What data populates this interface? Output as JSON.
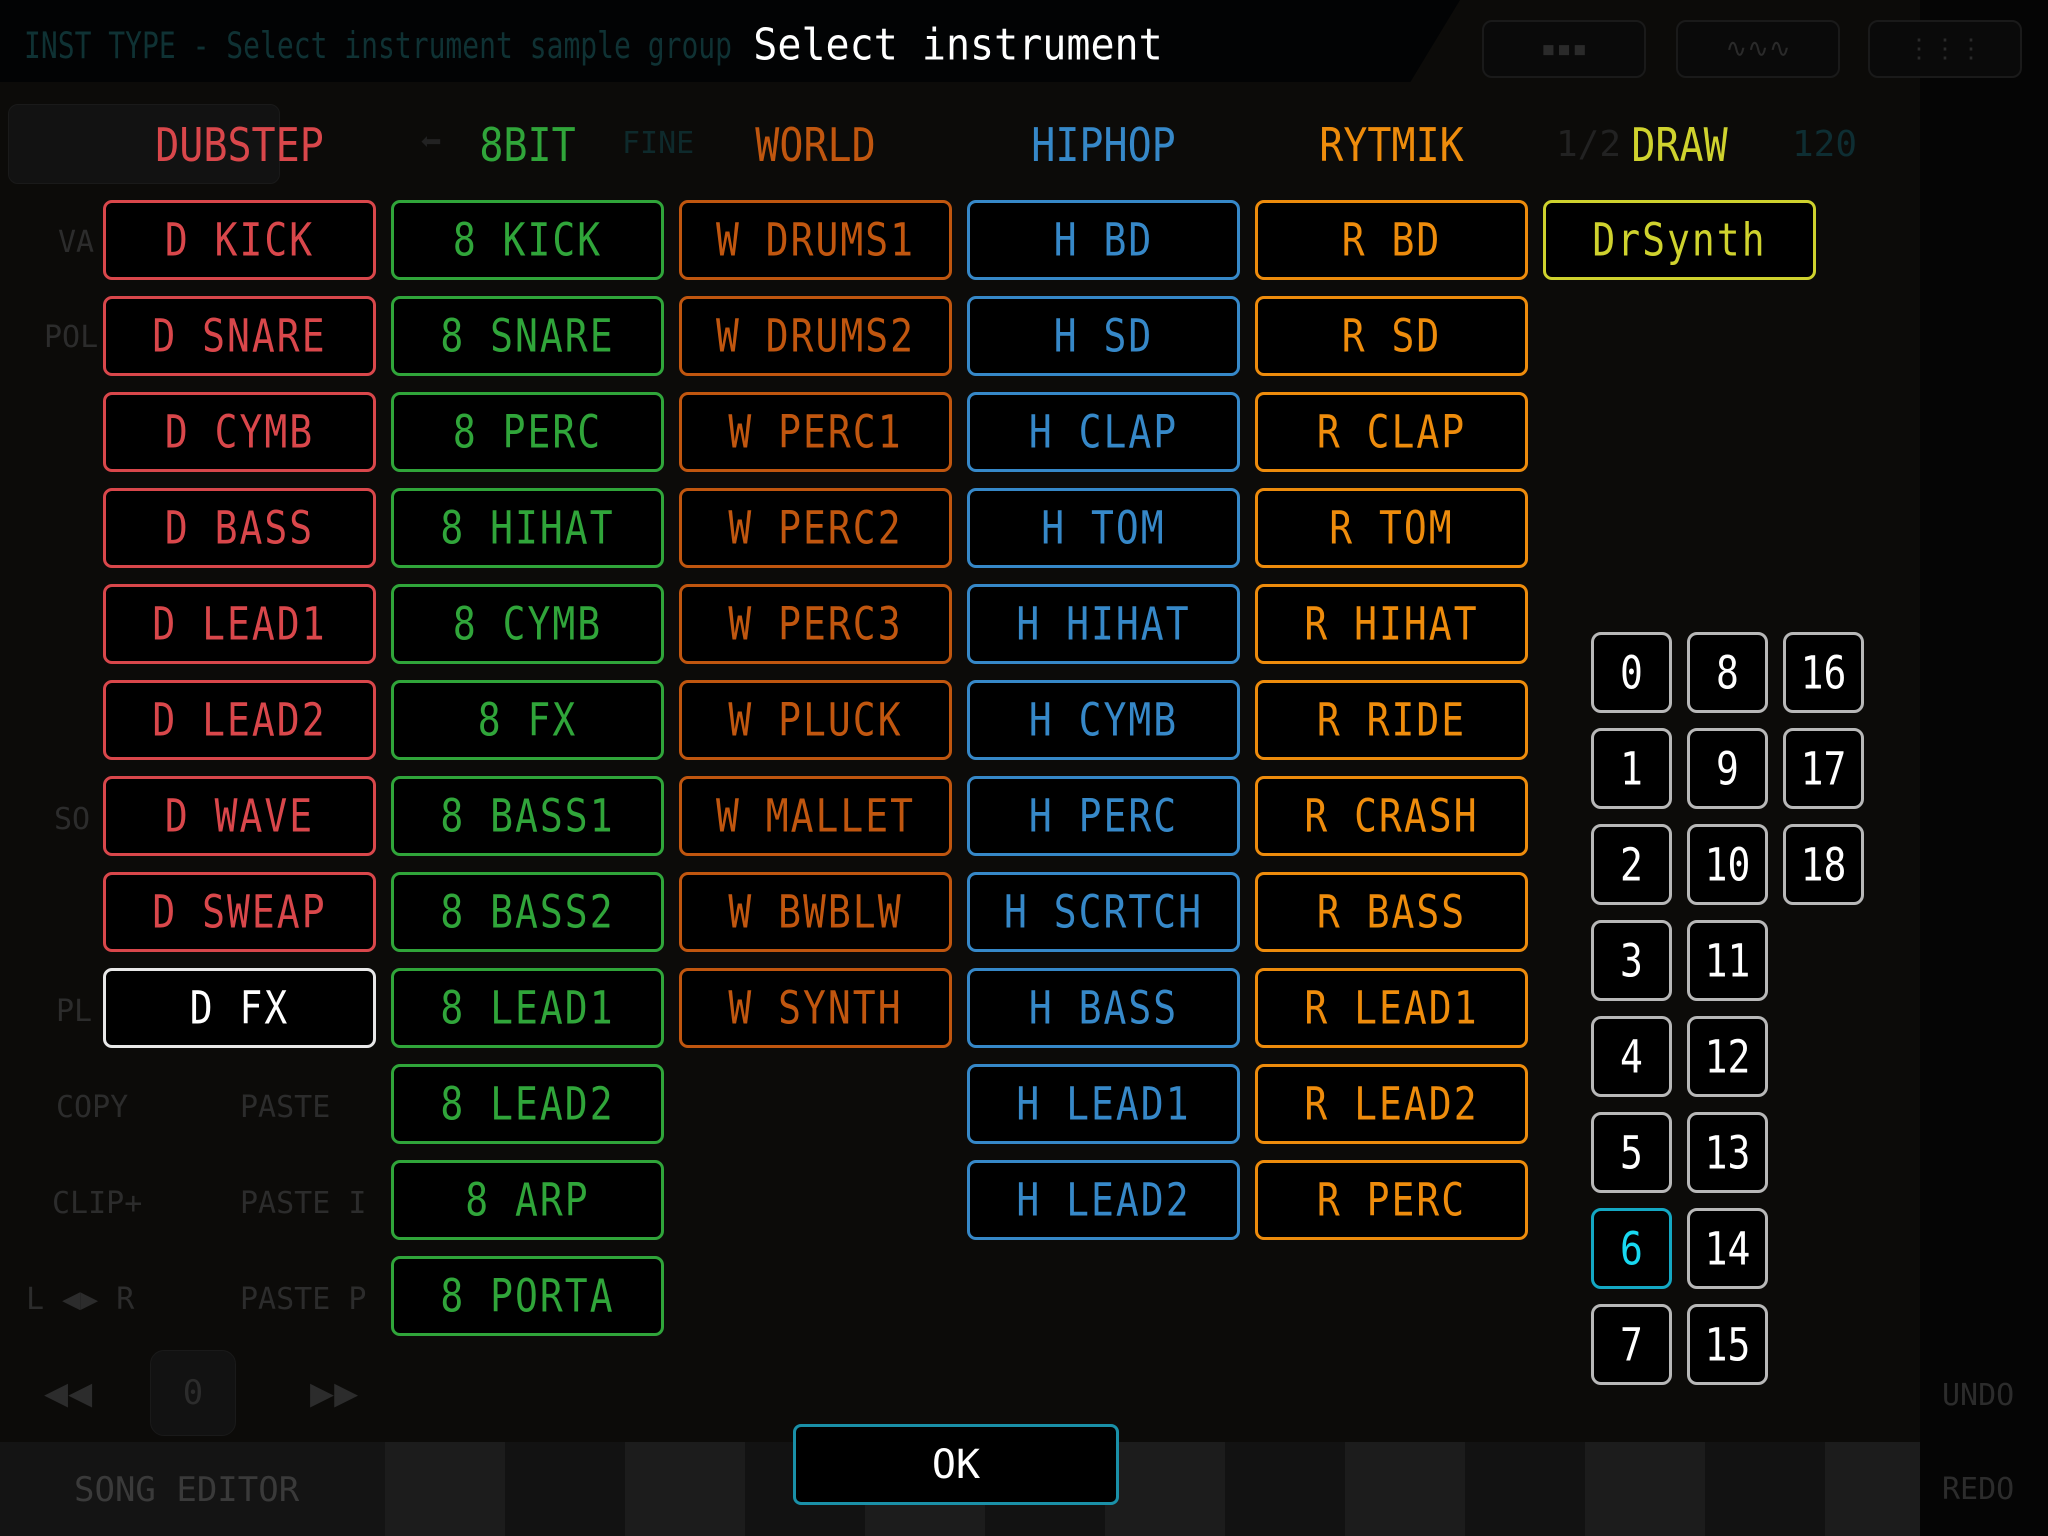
{
  "topbar": {
    "hint": "INST TYPE - Select instrument sample group",
    "title": "Select instrument"
  },
  "background": {
    "copy": "COPY",
    "paste": "PASTE",
    "clip_plus": "CLIP+",
    "paste_i": "PASTE I",
    "lr": "L ◀▶ R",
    "paste_p": "PASTE P",
    "position": "0",
    "song_editor": "SONG EDITOR",
    "undo": "UNDO",
    "redo": "REDO",
    "fine": "FINE",
    "tempo": "120",
    "fraction": "1/2",
    "left_labels": [
      "VA",
      "POL",
      "SO",
      "PL"
    ]
  },
  "colors": {
    "dubstep": "#d9474b",
    "8bit": "#30a53a",
    "world": "#c0560f",
    "hiphop": "#3688c8",
    "rytmik": "#ee8c0c",
    "draw": "#cfd22e",
    "selected_number": "#18d8f0",
    "ok_border": "#1a90a8"
  },
  "groups": [
    {
      "key": "dubstep",
      "header": "DUBSTEP",
      "items": [
        "D KICK",
        "D SNARE",
        "D CYMB",
        "D BASS",
        "D LEAD1",
        "D LEAD2",
        "D WAVE",
        "D SWEAP",
        "D FX"
      ],
      "selected": "D FX"
    },
    {
      "key": "8bit",
      "header": "8BIT",
      "items": [
        "8 KICK",
        "8 SNARE",
        "8 PERC",
        "8 HIHAT",
        "8 CYMB",
        "8 FX",
        "8 BASS1",
        "8 BASS2",
        "8 LEAD1",
        "8 LEAD2",
        "8 ARP",
        "8 PORTA"
      ]
    },
    {
      "key": "world",
      "header": "WORLD",
      "items": [
        "W DRUMS1",
        "W DRUMS2",
        "W PERC1",
        "W PERC2",
        "W PERC3",
        "W PLUCK",
        "W MALLET",
        "W BWBLW",
        "W SYNTH"
      ]
    },
    {
      "key": "hiphop",
      "header": "HIPHOP",
      "items": [
        "H BD",
        "H SD",
        "H CLAP",
        "H TOM",
        "H HIHAT",
        "H CYMB",
        "H PERC",
        "H SCRTCH",
        "H BASS",
        "H LEAD1",
        "H LEAD2"
      ]
    },
    {
      "key": "rytmik",
      "header": "RYTMIK",
      "items": [
        "R BD",
        "R SD",
        "R CLAP",
        "R TOM",
        "R HIHAT",
        "R RIDE",
        "R CRASH",
        "R BASS",
        "R LEAD1",
        "R LEAD2",
        "R PERC"
      ]
    },
    {
      "key": "draw",
      "header": "DRAW",
      "items": [
        "DrSynth"
      ]
    }
  ],
  "numbers": {
    "columns": [
      [
        "0",
        "1",
        "2",
        "3",
        "4",
        "5",
        "6",
        "7"
      ],
      [
        "8",
        "9",
        "10",
        "11",
        "12",
        "13",
        "14",
        "15"
      ],
      [
        "16",
        "17",
        "18"
      ]
    ],
    "selected": "6"
  },
  "ok_label": "OK"
}
